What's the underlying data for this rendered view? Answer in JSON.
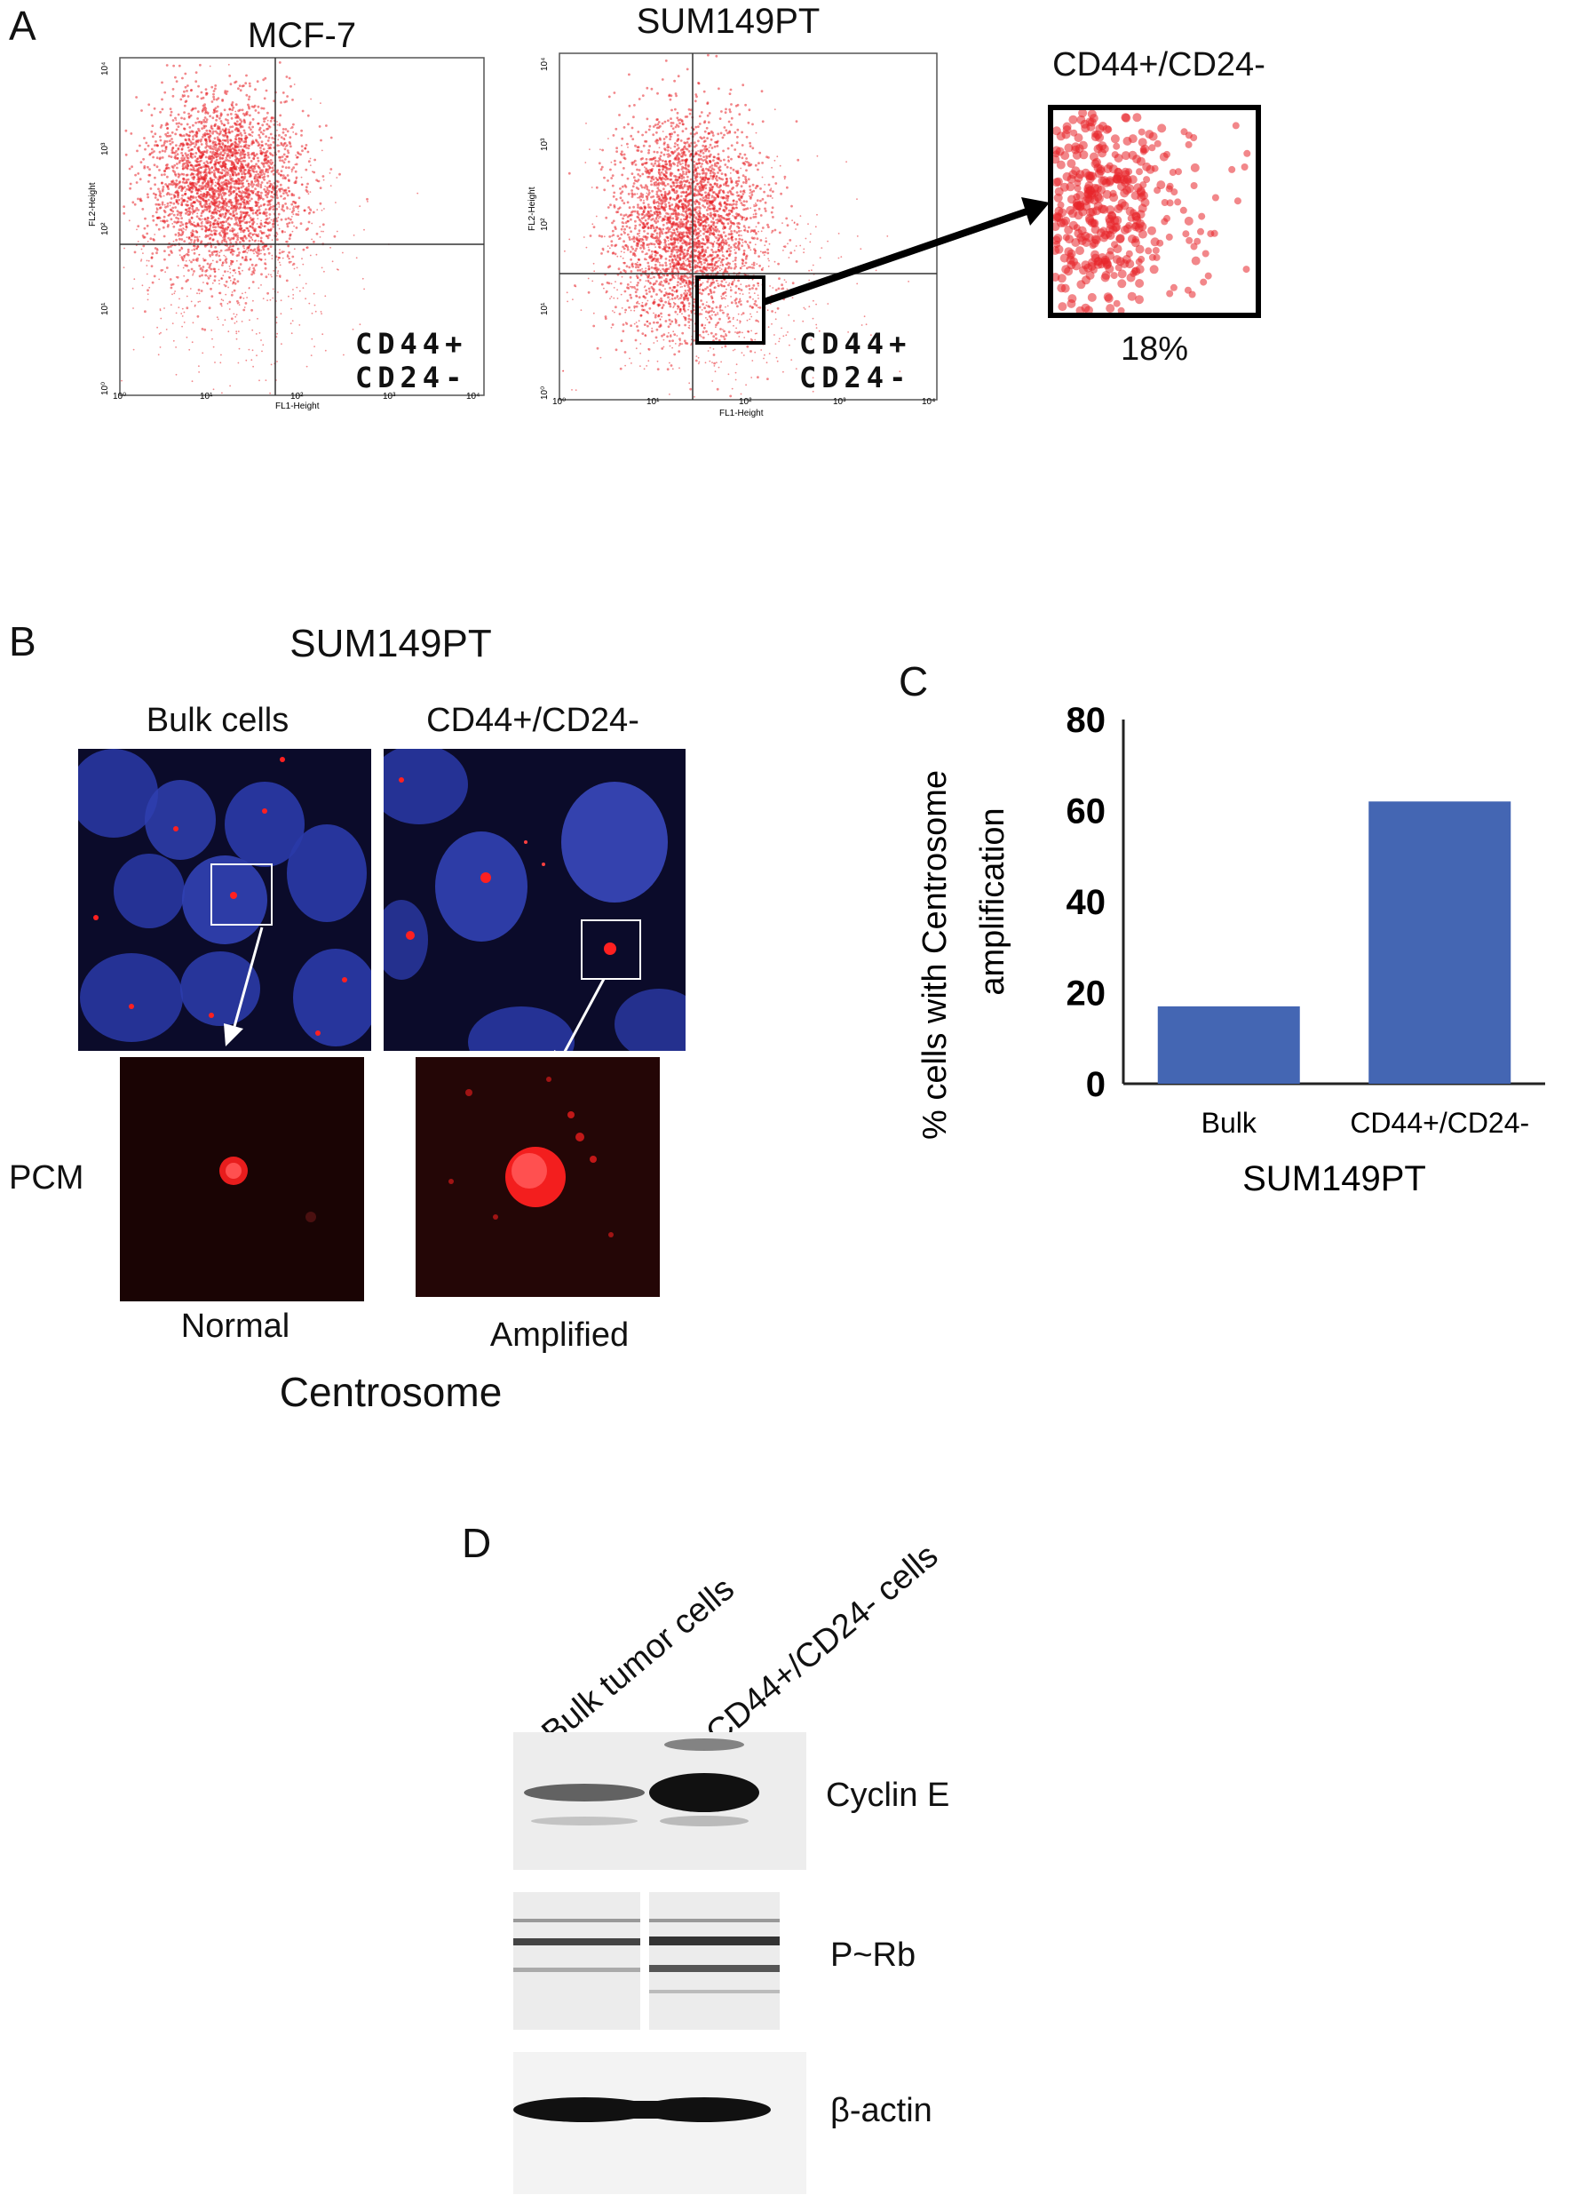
{
  "panel_a": {
    "letter": "A",
    "plot1_title": "MCF-7",
    "plot2_title": "SUM149PT",
    "gate_label_line1": "CD44+",
    "gate_label_line2": "CD24-",
    "y_axis_label": "FL2-Height",
    "x_axis_label": "FL1-Height",
    "x_ticks": [
      "10⁰",
      "10¹",
      "10²",
      "10³",
      "10⁴"
    ],
    "y_ticks": [
      "10⁰",
      "10¹",
      "10²",
      "10³",
      "10⁴"
    ],
    "zoom_title": "CD44+/CD24-",
    "zoom_percent": "18%"
  },
  "panel_b": {
    "letter": "B",
    "title": "SUM149PT",
    "col1_label": "Bulk cells",
    "col2_label": "CD44+/CD24-",
    "row_label": "PCM",
    "caption1": "Normal",
    "caption2": "Amplified",
    "footer": "Centrosome",
    "colors": {
      "nucleus": "#2a3aa8",
      "centrosome": "#ff2020"
    }
  },
  "panel_c": {
    "letter": "C",
    "bar_color": "#4466b3"
  },
  "chart_data": {
    "type": "bar",
    "categories": [
      "Bulk",
      "CD44+/CD24-"
    ],
    "values": [
      17,
      62
    ],
    "ylabel_line1": "% cells with Centrosome",
    "ylabel_line2": "amplification",
    "xlabel": "SUM149PT",
    "yticks": [
      "0",
      "20",
      "40",
      "60",
      "80"
    ],
    "ylim": [
      0,
      80
    ]
  },
  "panel_d": {
    "letter": "D",
    "lane1": "Bulk tumor cells",
    "lane2": "CD44+/CD24- cells",
    "band1": "Cyclin E",
    "band2": "P~Rb",
    "band3": "β-actin"
  }
}
